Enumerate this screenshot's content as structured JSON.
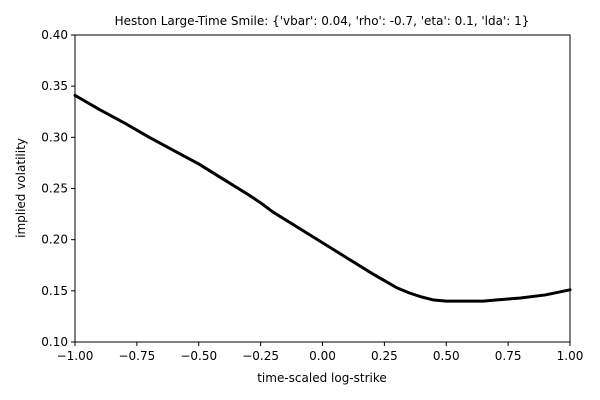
{
  "chart_data": {
    "type": "line",
    "title": "Heston Large-Time Smile: {'vbar': 0.04, 'rho': -0.7, 'eta': 0.1, 'lda': 1}",
    "xlabel": "time-scaled log-strike",
    "ylabel": "implied volatility",
    "xlim": [
      -1.0,
      1.0
    ],
    "ylim": [
      0.1,
      0.4
    ],
    "x_ticks": [
      -1.0,
      -0.75,
      -0.5,
      -0.25,
      0.0,
      0.25,
      0.5,
      0.75,
      1.0
    ],
    "x_tick_labels": [
      "−1.00",
      "−0.75",
      "−0.50",
      "−0.25",
      "0.00",
      "0.25",
      "0.50",
      "0.75",
      "1.00"
    ],
    "y_ticks": [
      0.1,
      0.15,
      0.2,
      0.25,
      0.3,
      0.35,
      0.4
    ],
    "y_tick_labels": [
      "0.10",
      "0.15",
      "0.20",
      "0.25",
      "0.30",
      "0.35",
      "0.40"
    ],
    "grid": false,
    "series": [
      {
        "color": "#000000",
        "x": [
          -1.0,
          -0.9,
          -0.8,
          -0.75,
          -0.7,
          -0.6,
          -0.5,
          -0.4,
          -0.3,
          -0.25,
          -0.2,
          -0.1,
          0.0,
          0.1,
          0.2,
          0.25,
          0.3,
          0.35,
          0.4,
          0.45,
          0.5,
          0.55,
          0.6,
          0.65,
          0.7,
          0.75,
          0.8,
          0.9,
          1.0
        ],
        "y": [
          0.341,
          0.327,
          0.314,
          0.307,
          0.3,
          0.287,
          0.274,
          0.259,
          0.244,
          0.236,
          0.227,
          0.212,
          0.197,
          0.182,
          0.167,
          0.16,
          0.153,
          0.148,
          0.144,
          0.141,
          0.14,
          0.14,
          0.14,
          0.14,
          0.141,
          0.142,
          0.143,
          0.146,
          0.151
        ]
      }
    ]
  }
}
